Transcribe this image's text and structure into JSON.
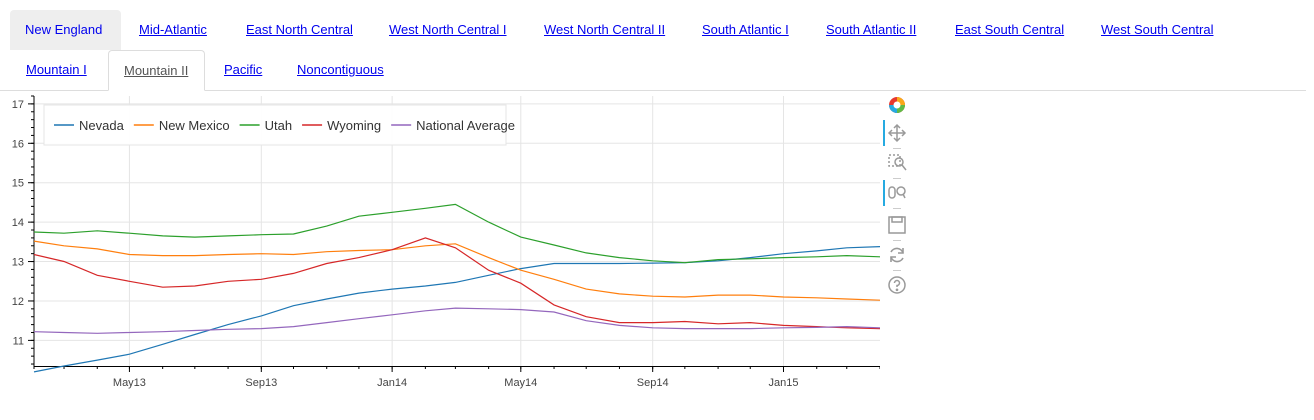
{
  "tabs_row1": [
    {
      "label": "New England"
    },
    {
      "label": "Mid-Atlantic"
    },
    {
      "label": "East North Central"
    },
    {
      "label": "West North Central I"
    },
    {
      "label": "West North Central II"
    },
    {
      "label": "South Atlantic I"
    },
    {
      "label": "South Atlantic II"
    },
    {
      "label": "East South Central"
    },
    {
      "label": "West South Central"
    }
  ],
  "tabs_row2": [
    {
      "label": "Mountain I"
    },
    {
      "label": "Mountain II"
    },
    {
      "label": "Pacific"
    },
    {
      "label": "Noncontiguous"
    }
  ],
  "selected_tab": "Mountain II",
  "toolbar": {
    "tools": [
      "bokeh-logo-icon",
      "pan-icon",
      "box-zoom-icon",
      "wheel-zoom-icon",
      "save-icon",
      "reset-icon",
      "help-icon"
    ],
    "active_color": "#26aae1"
  },
  "chart_data": {
    "type": "line",
    "title": "",
    "xlabel": "",
    "ylabel": "",
    "x": [
      "2013-02-01",
      "2013-03-01",
      "2013-04-01",
      "2013-05-01",
      "2013-06-01",
      "2013-07-01",
      "2013-08-01",
      "2013-09-01",
      "2013-10-01",
      "2013-11-01",
      "2013-12-01",
      "2014-01-01",
      "2014-02-01",
      "2014-03-01",
      "2014-04-01",
      "2014-05-01",
      "2014-06-01",
      "2014-07-01",
      "2014-08-01",
      "2014-09-01",
      "2014-10-01",
      "2014-11-01",
      "2014-12-01",
      "2015-01-01",
      "2015-02-01",
      "2015-03-01",
      "2015-04-01"
    ],
    "xlim": [
      "2013-02-01",
      "2015-04-01"
    ],
    "ylim": [
      10.35,
      17.2
    ],
    "x_ticks": [
      {
        "date": "2013-05-01",
        "label": "May13"
      },
      {
        "date": "2013-09-01",
        "label": "Sep13"
      },
      {
        "date": "2014-01-01",
        "label": "Jan14"
      },
      {
        "date": "2014-05-01",
        "label": "May14"
      },
      {
        "date": "2014-09-01",
        "label": "Sep14"
      },
      {
        "date": "2015-01-01",
        "label": "Jan15"
      }
    ],
    "y_ticks": [
      11,
      12,
      13,
      14,
      15,
      16,
      17
    ],
    "grid": true,
    "legend_position": "top-left",
    "series": [
      {
        "name": "Nevada",
        "color": "#1f77b4",
        "values": [
          10.2,
          10.35,
          10.5,
          10.65,
          10.9,
          11.15,
          11.4,
          11.62,
          11.88,
          12.05,
          12.2,
          12.3,
          12.38,
          12.47,
          12.65,
          12.82,
          12.95,
          12.95,
          12.95,
          12.96,
          12.97,
          13.02,
          13.1,
          13.2,
          13.27,
          13.35,
          13.38
        ]
      },
      {
        "name": "New Mexico",
        "color": "#ff7f0e",
        "values": [
          13.52,
          13.4,
          13.32,
          13.18,
          13.15,
          13.15,
          13.18,
          13.2,
          13.18,
          13.25,
          13.28,
          13.3,
          13.4,
          13.45,
          13.1,
          12.78,
          12.55,
          12.3,
          12.18,
          12.12,
          12.1,
          12.15,
          12.15,
          12.1,
          12.08,
          12.05,
          12.02
        ]
      },
      {
        "name": "Utah",
        "color": "#2ca02c",
        "values": [
          13.75,
          13.72,
          13.78,
          13.72,
          13.65,
          13.62,
          13.65,
          13.68,
          13.7,
          13.9,
          14.15,
          14.25,
          14.35,
          14.45,
          14.0,
          13.62,
          13.42,
          13.22,
          13.1,
          13.02,
          12.97,
          13.05,
          13.07,
          13.1,
          13.12,
          13.15,
          13.12
        ]
      },
      {
        "name": "Wyoming",
        "color": "#d62728",
        "values": [
          13.18,
          13.0,
          12.65,
          12.5,
          12.35,
          12.38,
          12.5,
          12.55,
          12.7,
          12.95,
          13.1,
          13.3,
          13.6,
          13.35,
          12.78,
          12.45,
          11.9,
          11.6,
          11.45,
          11.45,
          11.48,
          11.42,
          11.45,
          11.38,
          11.35,
          11.32,
          11.3
        ]
      },
      {
        "name": "National Average",
        "color": "#9467bd",
        "values": [
          11.22,
          11.2,
          11.18,
          11.2,
          11.22,
          11.25,
          11.28,
          11.3,
          11.35,
          11.45,
          11.55,
          11.65,
          11.75,
          11.82,
          11.8,
          11.78,
          11.72,
          11.5,
          11.38,
          11.32,
          11.3,
          11.3,
          11.3,
          11.32,
          11.33,
          11.35,
          11.32
        ]
      }
    ]
  }
}
